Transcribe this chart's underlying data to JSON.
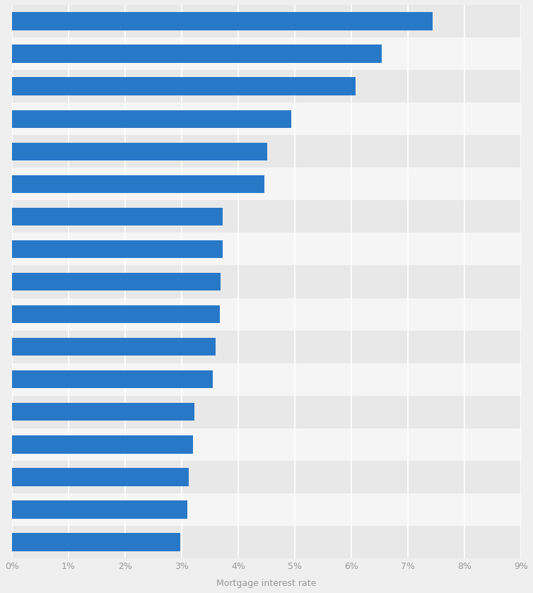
{
  "values": [
    7.44,
    6.54,
    6.07,
    4.94,
    4.51,
    4.46,
    3.73,
    3.73,
    3.69,
    3.68,
    3.6,
    3.55,
    3.22,
    3.2,
    3.13,
    3.1,
    2.98
  ],
  "bar_color": "#2878C8",
  "background_color": "#efefef",
  "stripe_colors": [
    "#e8e8e8",
    "#f5f5f5"
  ],
  "xlabel": "Mortgage interest rate",
  "xlim": [
    0,
    9
  ],
  "xticks": [
    0,
    1,
    2,
    3,
    4,
    5,
    6,
    7,
    8,
    9
  ],
  "xtick_labels": [
    "0%",
    "1%",
    "2%",
    "3%",
    "4%",
    "5%",
    "6%",
    "7%",
    "8%",
    "9%"
  ],
  "grid_color": "#ffffff",
  "xlabel_fontsize": 9,
  "xtick_fontsize": 9,
  "bar_height": 0.55
}
